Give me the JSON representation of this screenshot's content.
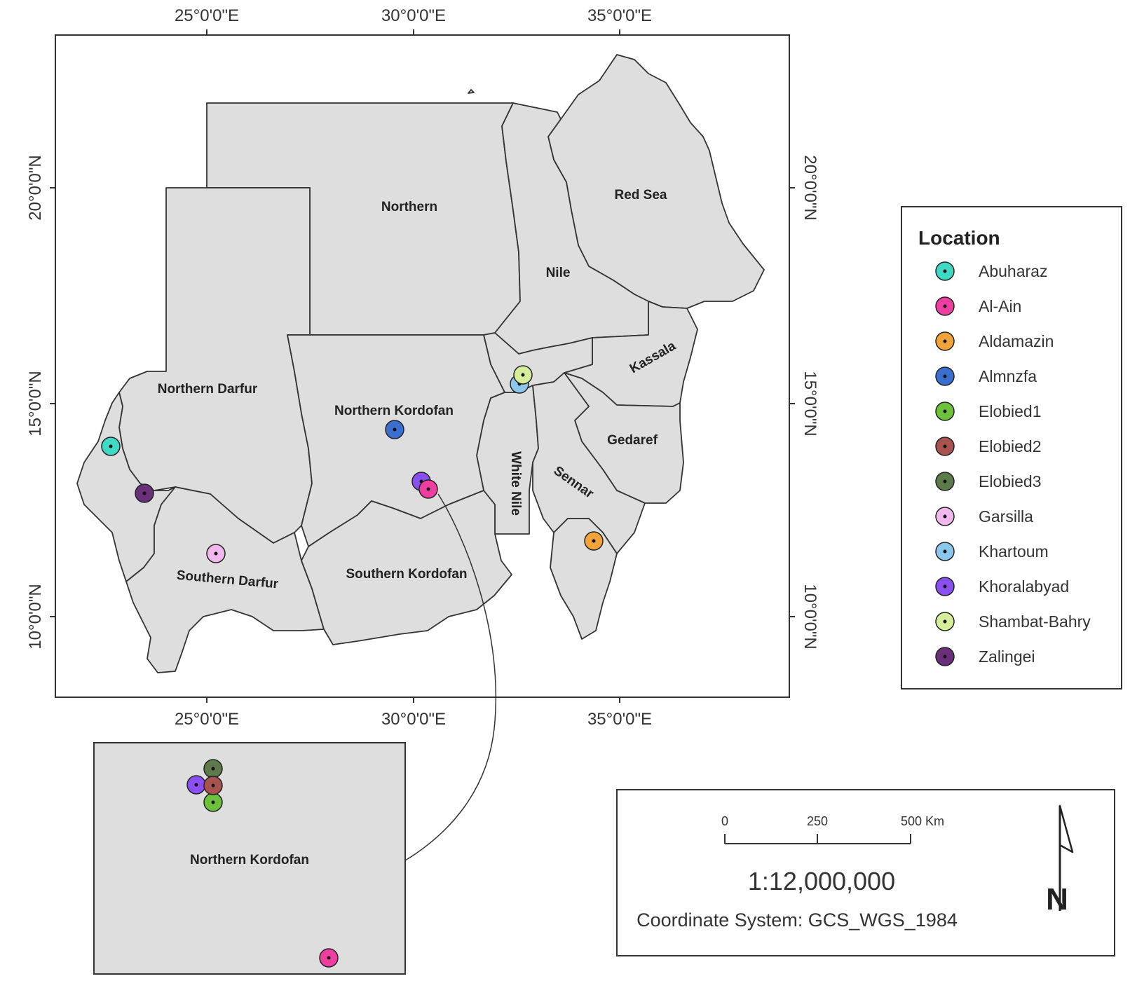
{
  "map": {
    "lon_labels": [
      "25°0'0\"E",
      "30°0'0\"E",
      "35°0'0\"E"
    ],
    "lat_labels": [
      "20°0'0\"N",
      "15°0'0\"N",
      "10°0'0\"N"
    ],
    "regions": {
      "northern": "Northern",
      "red_sea": "Red Sea",
      "nile": "Nile",
      "kassala": "Kassala",
      "northern_darfur": "Northern Darfur",
      "northern_kordofan": "Northern Kordofan",
      "gedaref": "Gedaref",
      "white_nile": "White Nile",
      "sennar": "Sennar",
      "southern_darfur": "Southern Darfur",
      "southern_kordofan": "Southern Kordofan"
    },
    "inset_label": "Northern Kordofan"
  },
  "legend": {
    "title": "Location",
    "items": [
      {
        "label": "Abuharaz",
        "color": "#3fd9c4"
      },
      {
        "label": "Al-Ain",
        "color": "#ee3fa0"
      },
      {
        "label": "Aldamazin",
        "color": "#f2a43a"
      },
      {
        "label": "Almnzfa",
        "color": "#3a6fd0"
      },
      {
        "label": "Elobied1",
        "color": "#6cc23a"
      },
      {
        "label": "Elobied2",
        "color": "#a8534f"
      },
      {
        "label": "Elobied3",
        "color": "#5c7a4a"
      },
      {
        "label": "Garsilla",
        "color": "#f2b8ee"
      },
      {
        "label": "Khartoum",
        "color": "#8cc8ee"
      },
      {
        "label": "Khoralabyad",
        "color": "#8a4ff0"
      },
      {
        "label": "Shambat-Bahry",
        "color": "#d6ee9a"
      },
      {
        "label": "Zalingei",
        "color": "#6a2e7a"
      }
    ]
  },
  "scale": {
    "ticks": [
      "0",
      "250",
      "500 Km"
    ],
    "ratio": "1:12,000,000",
    "coordinate_system": "Coordinate System: GCS_WGS_1984",
    "north": "N"
  }
}
